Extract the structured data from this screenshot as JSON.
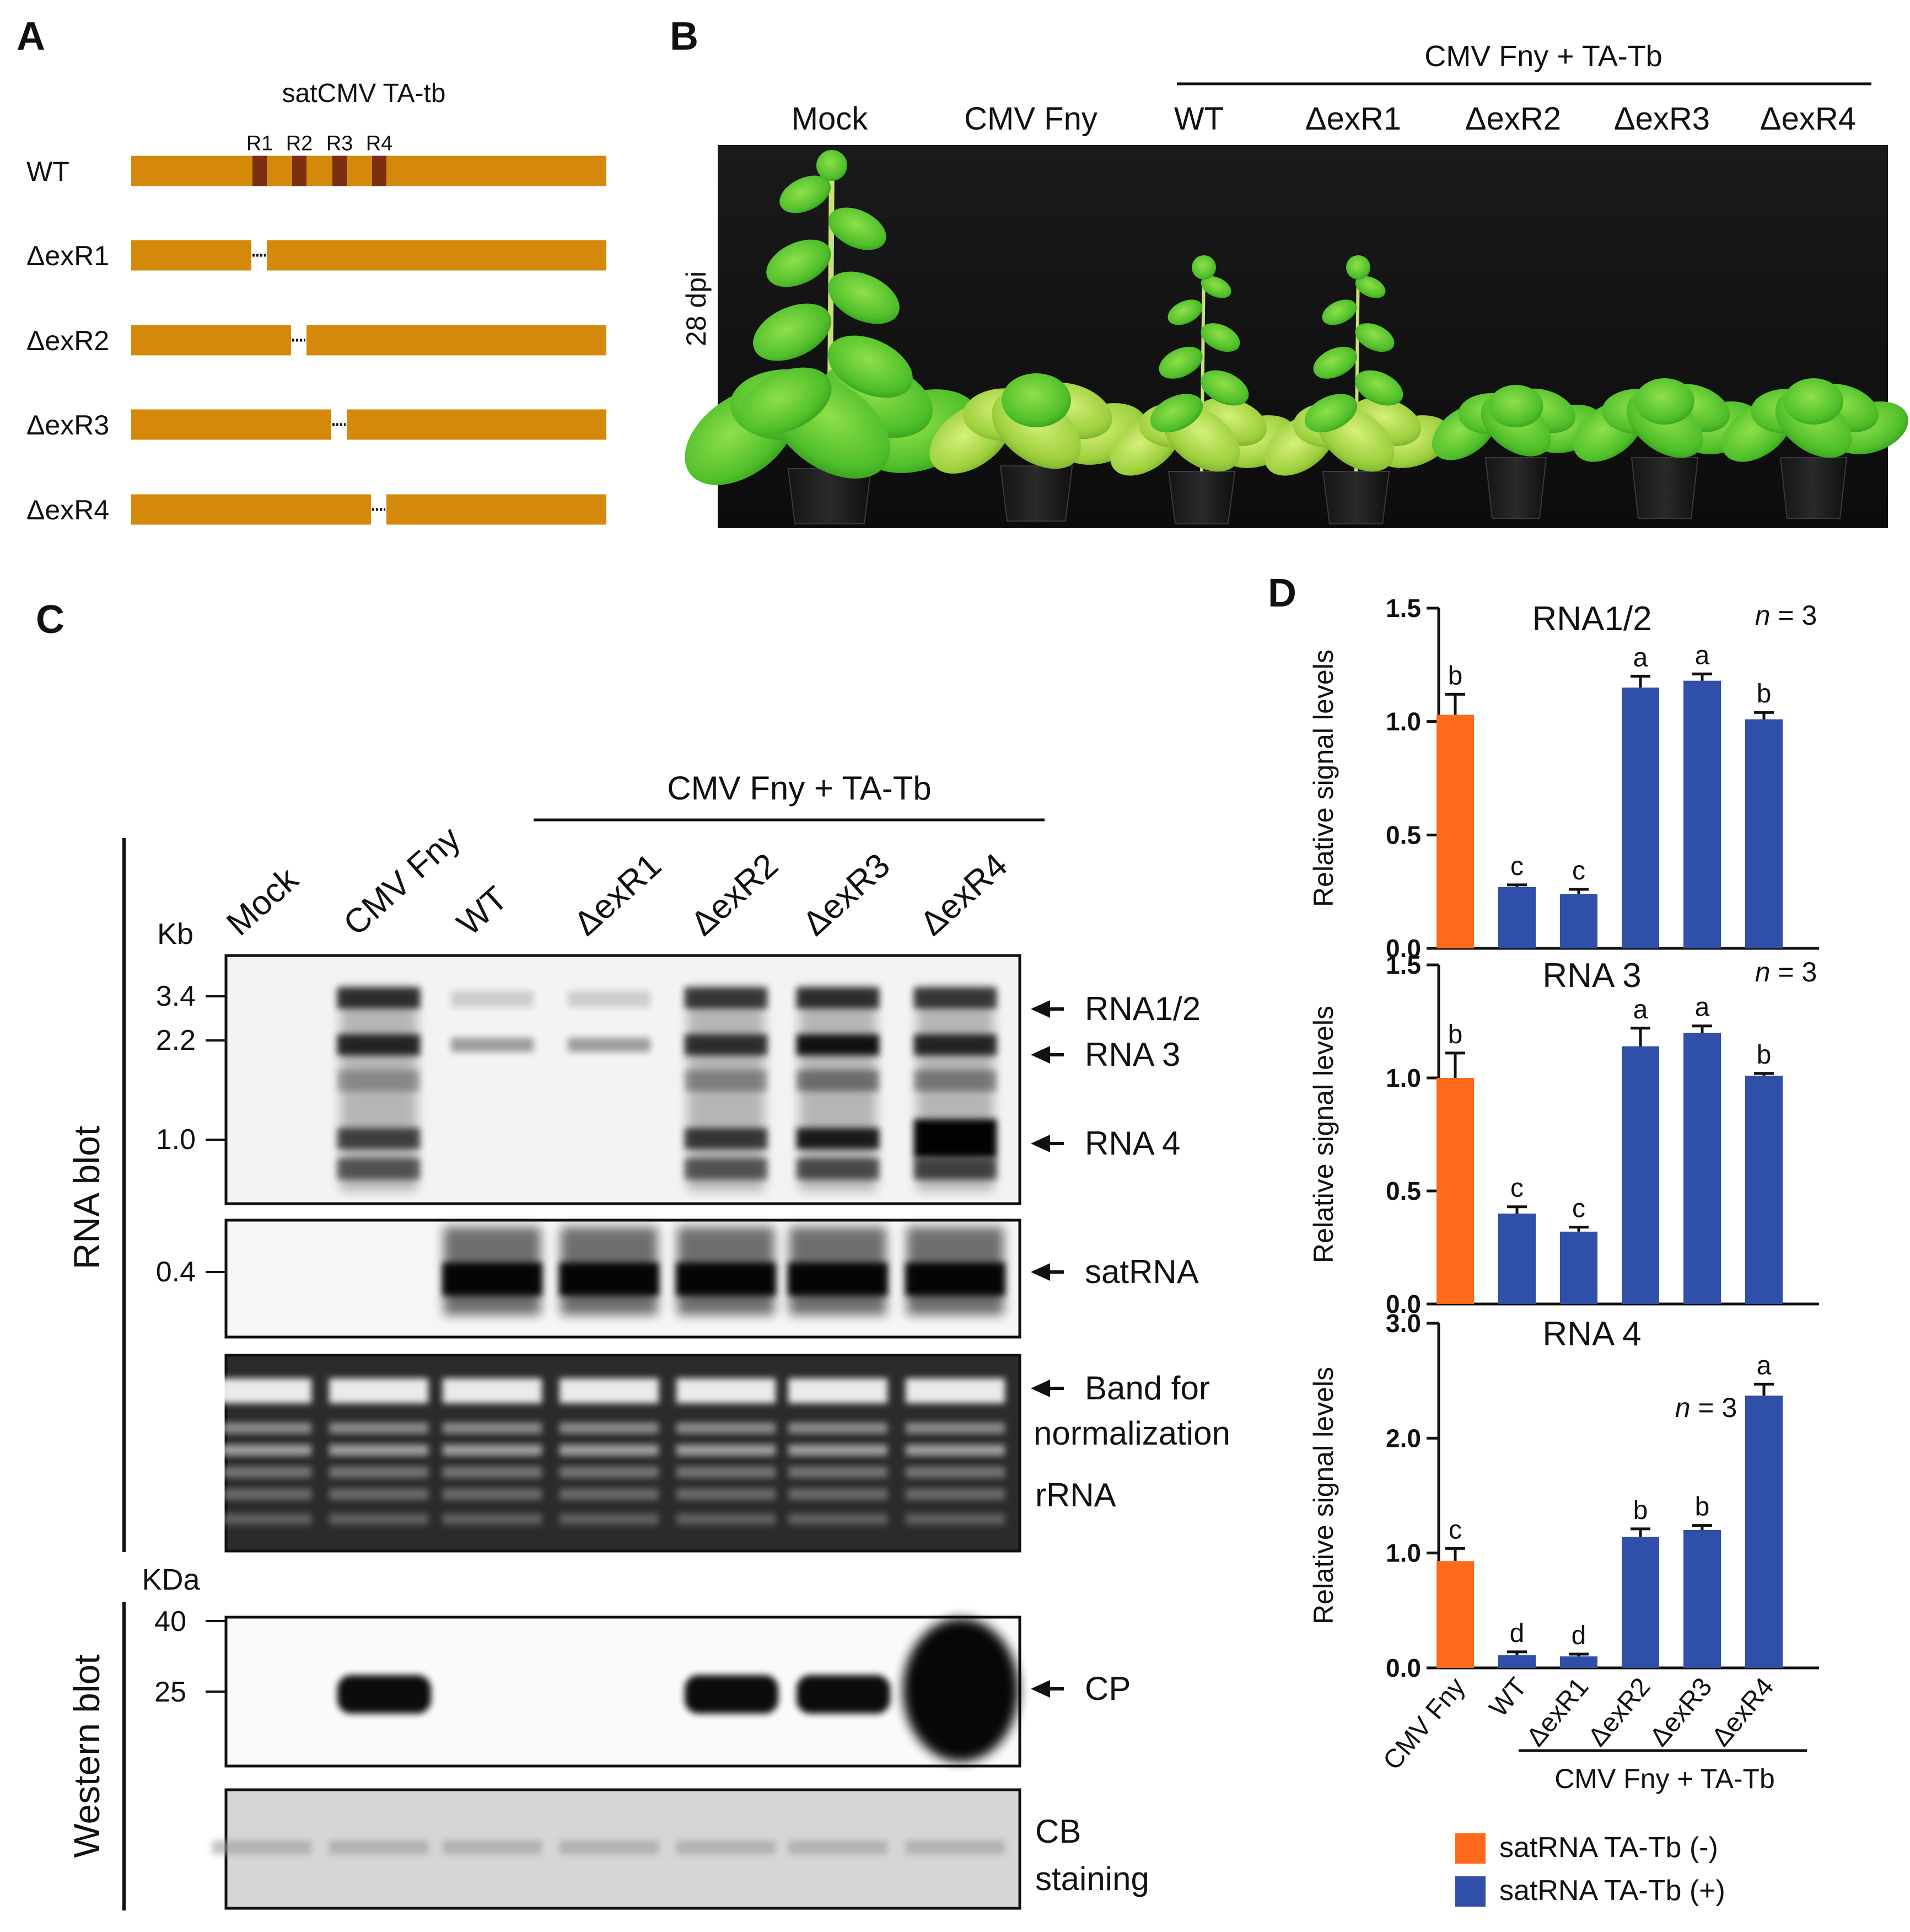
{
  "panel_a": {
    "letter": "A",
    "title": "satCMV TA-tb",
    "region_labels": [
      "R1",
      "R2",
      "R3",
      "R4"
    ],
    "constructs": [
      "WT",
      "ΔexR1",
      "ΔexR2",
      "ΔexR3",
      "ΔexR4"
    ],
    "colors": {
      "bar": "#d4890a",
      "region": "#7a2f10"
    }
  },
  "panel_b": {
    "letter": "B",
    "group_label": "CMV Fny + TA-Tb",
    "lanes": [
      "Mock",
      "CMV Fny",
      "WT",
      "ΔexR1",
      "ΔexR2",
      "ΔexR3",
      "ΔexR4"
    ],
    "time_label": "28 dpi"
  },
  "panel_c": {
    "letter": "C",
    "group_label": "CMV Fny + TA-Tb",
    "lanes": [
      "Mock",
      "CMV Fny",
      "WT",
      "ΔexR1",
      "ΔexR2",
      "ΔexR3",
      "ΔexR4"
    ],
    "kb_unit": "Kb",
    "kb_markers": [
      "3.4",
      "2.2",
      "1.0",
      "0.4"
    ],
    "kda_unit": "KDa",
    "kda_markers": [
      "40",
      "25"
    ],
    "section_rna": "RNA blot",
    "section_western": "Western blot",
    "band_labels": {
      "rna12": "RNA1/2",
      "rna3": "RNA 3",
      "rna4": "RNA 4",
      "satrna": "satRNA",
      "norm1": "Band for",
      "norm2": "normalization",
      "rrna": "rRNA",
      "cp": "CP",
      "cb1": "CB",
      "cb2": "staining"
    }
  },
  "panel_d": {
    "letter": "D",
    "ylabel": "Relative signal levels",
    "group_label": "CMV Fny + TA-Tb",
    "legend": [
      {
        "label": "satRNA TA-Tb (-)",
        "color": "#ff6a1a"
      },
      {
        "label": "satRNA TA-Tb (+)",
        "color": "#2f4fa8"
      }
    ]
  },
  "chart_data": [
    {
      "type": "bar",
      "title": "RNA1/2",
      "n_label": "n = 3",
      "categories": [
        "CMV Fny",
        "WT",
        "ΔexR1",
        "ΔexR2",
        "ΔexR3",
        "ΔexR4"
      ],
      "values": [
        1.03,
        0.27,
        0.24,
        1.15,
        1.18,
        1.01
      ],
      "errors": [
        0.09,
        0.01,
        0.02,
        0.05,
        0.03,
        0.03
      ],
      "letters": [
        "b",
        "c",
        "c",
        "a",
        "a",
        "b"
      ],
      "ylim": [
        0,
        1.5
      ],
      "yticks": [
        "0.0",
        "0.5",
        "1.0",
        "1.5"
      ],
      "ylabel": "Relative signal levels",
      "grid": false
    },
    {
      "type": "bar",
      "title": "RNA 3",
      "n_label": "n = 3",
      "categories": [
        "CMV Fny",
        "WT",
        "ΔexR1",
        "ΔexR2",
        "ΔexR3",
        "ΔexR4"
      ],
      "values": [
        1.0,
        0.4,
        0.32,
        1.14,
        1.2,
        1.01
      ],
      "errors": [
        0.11,
        0.03,
        0.02,
        0.08,
        0.03,
        0.01
      ],
      "letters": [
        "b",
        "c",
        "c",
        "a",
        "a",
        "b"
      ],
      "ylim": [
        0,
        1.5
      ],
      "yticks": [
        "0.0",
        "0.5",
        "1.0",
        "1.5"
      ],
      "ylabel": "Relative signal levels",
      "grid": false
    },
    {
      "type": "bar",
      "title": "RNA 4",
      "n_label": "n = 3",
      "categories": [
        "CMV Fny",
        "WT",
        "ΔexR1",
        "ΔexR2",
        "ΔexR3",
        "ΔexR4"
      ],
      "values": [
        0.93,
        0.11,
        0.1,
        1.14,
        1.2,
        2.37
      ],
      "errors": [
        0.11,
        0.03,
        0.02,
        0.07,
        0.04,
        0.1
      ],
      "letters": [
        "c",
        "d",
        "d",
        "b",
        "b",
        "a"
      ],
      "ylim": [
        0,
        3.0
      ],
      "yticks": [
        "0.0",
        "1.0",
        "2.0",
        "3.0"
      ],
      "ylabel": "Relative signal levels",
      "grid": false
    }
  ]
}
